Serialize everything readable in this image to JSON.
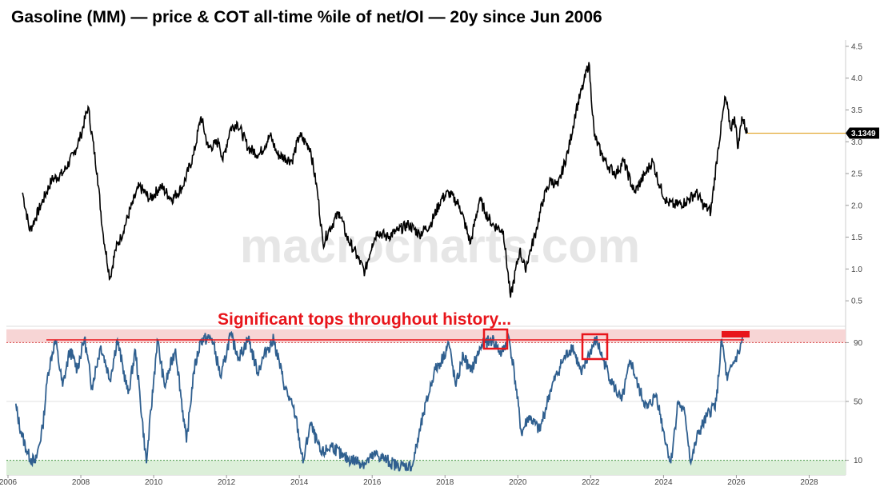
{
  "page": {
    "title": "Gasoline (MM) — price & COT all-time %ile of net/OI — 20y since Jun 2006",
    "watermark": "macrocharts.com"
  },
  "chart_data": [
    {
      "type": "line",
      "panel": "price",
      "title": "",
      "ylim": [
        0.2,
        4.6
      ],
      "y_ticks": [
        "0.5",
        "1.0",
        "1.5",
        "2.0",
        "2.5",
        "3.0",
        "3.5",
        "4.0",
        "4.5"
      ],
      "last_value_label": "3.1349",
      "last_value": 3.1349,
      "series": [
        {
          "color": "#000000",
          "x": [
            2006.4,
            2006.6,
            2006.9,
            2007.2,
            2007.5,
            2007.8,
            2008.0,
            2008.2,
            2008.45,
            2008.6,
            2008.8,
            2008.95,
            2009.1,
            2009.4,
            2009.6,
            2009.9,
            2010.2,
            2010.5,
            2010.8,
            2011.1,
            2011.3,
            2011.5,
            2011.8,
            2011.9,
            2012.1,
            2012.3,
            2012.6,
            2012.9,
            2013.2,
            2013.4,
            2013.8,
            2014.0,
            2014.3,
            2014.5,
            2014.65,
            2014.8,
            2015.1,
            2015.3,
            2015.5,
            2015.8,
            2016.0,
            2016.15,
            2016.4,
            2016.7,
            2017.0,
            2017.3,
            2017.6,
            2017.9,
            2018.1,
            2018.4,
            2018.7,
            2018.95,
            2019.1,
            2019.3,
            2019.6,
            2019.8,
            2020.05,
            2020.2,
            2020.3,
            2020.5,
            2020.7,
            2020.9,
            2021.1,
            2021.4,
            2021.6,
            2021.8,
            2021.95,
            2022.1,
            2022.3,
            2022.5,
            2022.7,
            2022.9,
            2023.2,
            2023.5,
            2023.7,
            2023.9,
            2024.1,
            2024.3,
            2024.6,
            2024.9,
            2025.1,
            2025.3,
            2025.5,
            2025.7,
            2025.85,
            2025.95,
            2026.05,
            2026.15,
            2026.3
          ],
          "values": [
            2.2,
            1.6,
            2.0,
            2.4,
            2.5,
            2.8,
            3.1,
            3.55,
            2.5,
            1.6,
            0.85,
            1.3,
            1.5,
            2.0,
            2.3,
            2.1,
            2.3,
            2.1,
            2.3,
            2.8,
            3.4,
            2.9,
            3.0,
            2.7,
            3.2,
            3.3,
            2.9,
            2.8,
            3.1,
            2.8,
            2.7,
            3.1,
            2.9,
            2.2,
            1.4,
            1.6,
            1.9,
            1.5,
            1.3,
            0.95,
            1.4,
            1.6,
            1.5,
            1.6,
            1.7,
            1.55,
            1.7,
            2.1,
            2.2,
            2.0,
            1.4,
            2.1,
            1.9,
            1.7,
            1.6,
            0.55,
            1.3,
            1.0,
            1.2,
            1.6,
            2.1,
            2.4,
            2.3,
            2.9,
            3.5,
            3.9,
            4.25,
            3.1,
            2.8,
            2.6,
            2.5,
            2.7,
            2.2,
            2.5,
            2.7,
            2.3,
            2.05,
            2.0,
            2.05,
            2.2,
            2.0,
            1.9,
            2.9,
            3.7,
            3.2,
            3.4,
            2.9,
            3.4,
            3.13
          ]
        }
      ]
    },
    {
      "type": "line",
      "panel": "cot_percentile",
      "title": "",
      "ylim": [
        0,
        100
      ],
      "y_ticks": [
        "10",
        "50",
        "90"
      ],
      "annotations": [
        "Significant tops throughout history..."
      ],
      "bands": [
        {
          "from": 90,
          "to": 100,
          "color": "#f7d5d5"
        },
        {
          "from": 0,
          "to": 10,
          "color": "#dcefd9"
        }
      ],
      "series": [
        {
          "color": "#2f5f8f",
          "x": [
            2006.2,
            2006.35,
            2006.55,
            2006.75,
            2006.95,
            2007.1,
            2007.3,
            2007.5,
            2007.7,
            2007.9,
            2008.1,
            2008.3,
            2008.55,
            2008.8,
            2009.0,
            2009.3,
            2009.5,
            2009.8,
            2010.1,
            2010.3,
            2010.6,
            2010.9,
            2011.1,
            2011.3,
            2011.6,
            2011.85,
            2012.1,
            2012.35,
            2012.6,
            2012.85,
            2013.1,
            2013.3,
            2013.6,
            2013.9,
            2014.1,
            2014.3,
            2014.6,
            2014.9,
            2015.2,
            2015.5,
            2015.8,
            2016.1,
            2016.4,
            2016.7,
            2016.9,
            2017.1,
            2017.4,
            2017.7,
            2017.95,
            2018.1,
            2018.3,
            2018.5,
            2018.7,
            2019.0,
            2019.3,
            2019.55,
            2019.75,
            2019.9,
            2020.1,
            2020.3,
            2020.6,
            2020.9,
            2021.2,
            2021.5,
            2021.75,
            2021.95,
            2022.15,
            2022.35,
            2022.6,
            2022.85,
            2023.1,
            2023.3,
            2023.55,
            2023.8,
            2024.0,
            2024.2,
            2024.4,
            2024.6,
            2024.75,
            2024.95,
            2025.2,
            2025.45,
            2025.6,
            2025.75,
            2025.9,
            2026.1,
            2026.2
          ],
          "values": [
            48,
            30,
            14,
            8,
            32,
            70,
            92,
            60,
            85,
            72,
            93,
            60,
            88,
            65,
            92,
            55,
            85,
            8,
            92,
            60,
            86,
            22,
            70,
            92,
            93,
            66,
            95,
            80,
            93,
            70,
            85,
            92,
            60,
            40,
            8,
            35,
            14,
            20,
            12,
            10,
            8,
            14,
            10,
            6,
            6,
            6,
            40,
            70,
            80,
            90,
            60,
            82,
            70,
            88,
            92,
            82,
            94,
            70,
            28,
            40,
            30,
            58,
            76,
            88,
            68,
            82,
            92,
            78,
            62,
            50,
            78,
            60,
            45,
            55,
            30,
            8,
            50,
            40,
            8,
            28,
            40,
            50,
            92,
            64,
            75,
            85,
            96
          ]
        }
      ]
    }
  ],
  "x_axis": {
    "years": [
      "2006",
      "2008",
      "2010",
      "2012",
      "2014",
      "2016",
      "2018",
      "2020",
      "2022",
      "2024",
      "2026",
      "2028"
    ]
  }
}
